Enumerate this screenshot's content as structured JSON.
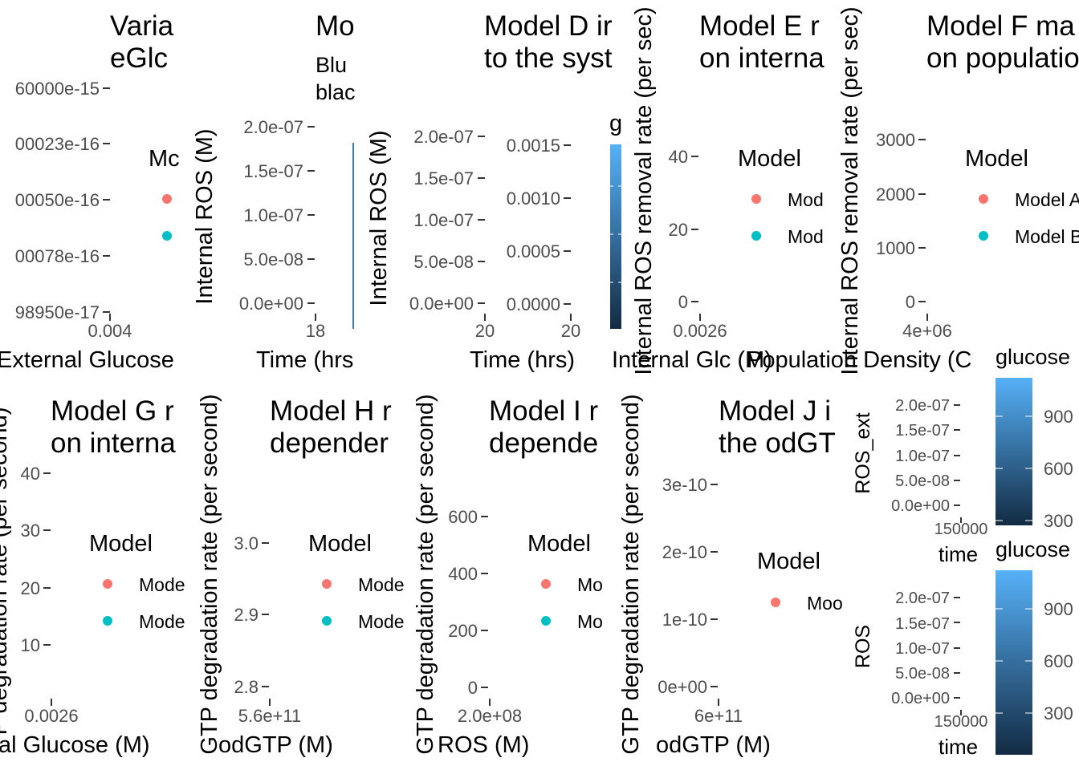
{
  "colors": {
    "series_a": "#F8766D",
    "series_b": "#00BFC4",
    "gradient_low": "#132B43",
    "gradient_high": "#56B1F7",
    "tick_color": "#4D4D4D",
    "text_color": "#000000"
  },
  "chart_data": [
    {
      "panel": "p1",
      "type": "scatter",
      "title_lines": [
        "Varia",
        "eGlc"
      ],
      "xlabel": "External Glucose",
      "ylabel": "",
      "x_ticks": [
        "0.004"
      ],
      "y_ticks": [
        "60000e-15",
        "00023e-16",
        "00050e-16",
        "00078e-16",
        "98950e-17"
      ],
      "legend_title": "Mc",
      "legend_items": [
        "",
        ""
      ],
      "series": []
    },
    {
      "panel": "p2",
      "type": "line",
      "title_lines": [
        "Mo"
      ],
      "subtitle_lines": [
        "Blu",
        "blac"
      ],
      "xlabel": "Time (hrs",
      "ylabel": "Internal ROS (M)",
      "x_ticks": [
        "18"
      ],
      "y_ticks": [
        "2.0e-07",
        "1.5e-07",
        "1.0e-07",
        "5.0e-08",
        "0.0e+00"
      ],
      "series": []
    },
    {
      "panel": "p3",
      "type": "line",
      "title_lines": [
        "Model D ir",
        "to the syst"
      ],
      "xlabel": "Time (hrs)",
      "ylabel": "Internal ROS (M)",
      "x_ticks": [
        "20"
      ],
      "y_ticks": [
        "2.0e-07",
        "1.5e-07",
        "1.0e-07",
        "5.0e-08",
        "0.0e+00"
      ],
      "series": []
    },
    {
      "panel": "p4",
      "type": "line",
      "title_lines": [],
      "xlabel": "",
      "ylabel": "",
      "x_ticks": [
        "20"
      ],
      "y_ticks": [
        "0.0015",
        "0.0010",
        "0.0005",
        "0.0000"
      ],
      "colorbar_title": "g",
      "series": []
    },
    {
      "panel": "p5",
      "type": "line",
      "title_lines": [
        "Model E r",
        "on interna"
      ],
      "xlabel": "Internal Glc (M)",
      "ylabel": "Internal ROS removal rate (per sec)",
      "x_ticks": [
        "0.0026"
      ],
      "y_ticks": [
        "40",
        "20",
        "0"
      ],
      "legend_title": "Model",
      "legend_items": [
        "Mod",
        "Mod"
      ],
      "series": []
    },
    {
      "panel": "p6",
      "type": "line",
      "title_lines": [
        "Model F ma",
        "on populatio"
      ],
      "xlabel": "Population Density (C",
      "ylabel": "Internal ROS removal rate (per sec)",
      "x_ticks": [
        "4e+06"
      ],
      "y_ticks": [
        "3000",
        "2000",
        "1000",
        "0"
      ],
      "legend_title": "Model",
      "legend_items": [
        "Model A",
        "Model B"
      ],
      "series": []
    },
    {
      "panel": "p7",
      "type": "line",
      "title_lines": [
        "Model G r",
        "on interna"
      ],
      "xlabel": "al Glucose (M)",
      "ylabel": "P degradation rate (per second)",
      "x_ticks": [
        "0.0026"
      ],
      "y_ticks": [
        "40",
        "30",
        "20",
        "10"
      ],
      "legend_title": "Model",
      "legend_items": [
        "Mode",
        "Mode"
      ],
      "series": []
    },
    {
      "panel": "p8",
      "type": "line",
      "title_lines": [
        "Model H r",
        "depender"
      ],
      "xlabel": "odGTP (M)",
      "ylabel": "GTP degradation rate (per second)",
      "x_ticks": [
        "5.6e+11"
      ],
      "y_ticks": [
        "3.0",
        "2.9",
        "2.8"
      ],
      "legend_title": "Model",
      "legend_items": [
        "Mode",
        "Mode"
      ],
      "series": []
    },
    {
      "panel": "p9",
      "type": "line",
      "title_lines": [
        "Model I r",
        "depende"
      ],
      "xlabel": "ROS (M)",
      "ylabel": "GTP degradation rate (per second)",
      "x_ticks": [
        "2.0e+08"
      ],
      "y_ticks": [
        "600",
        "400",
        "200",
        "0"
      ],
      "legend_title": "Model",
      "legend_items": [
        "Mo",
        "Mo"
      ],
      "series": []
    },
    {
      "panel": "p10",
      "type": "line",
      "title_lines": [
        "Model J i",
        "the odGT"
      ],
      "xlabel": "odGTP (M)",
      "ylabel": "GTP degradation rate (per second)",
      "x_ticks": [
        "6e+11"
      ],
      "y_ticks": [
        "3e-10",
        "2e-10",
        "1e-10",
        "0e+00"
      ],
      "legend_title": "Model",
      "legend_items": [
        "Moo"
      ],
      "series": []
    },
    {
      "panel": "p11",
      "type": "line",
      "title_lines": [],
      "xlabel": "time",
      "ylabel": "ROS_ext",
      "x_ticks": [
        "150000"
      ],
      "y_ticks": [
        "2.0e-07",
        "1.5e-07",
        "1.0e-07",
        "5.0e-08",
        "0.0e+00"
      ],
      "colorbar_title": "glucose",
      "colorbar_ticks": [
        "900",
        "600",
        "300"
      ],
      "series": []
    },
    {
      "panel": "p12",
      "type": "line",
      "title_lines": [],
      "xlabel": "time",
      "ylabel": "ROS",
      "x_ticks": [
        "150000"
      ],
      "y_ticks": [
        "2.0e-07",
        "1.5e-07",
        "1.0e-07",
        "5.0e-08",
        "0.0e+00"
      ],
      "colorbar_title": "glucose",
      "colorbar_ticks": [
        "900",
        "600",
        "300"
      ],
      "series": []
    }
  ]
}
